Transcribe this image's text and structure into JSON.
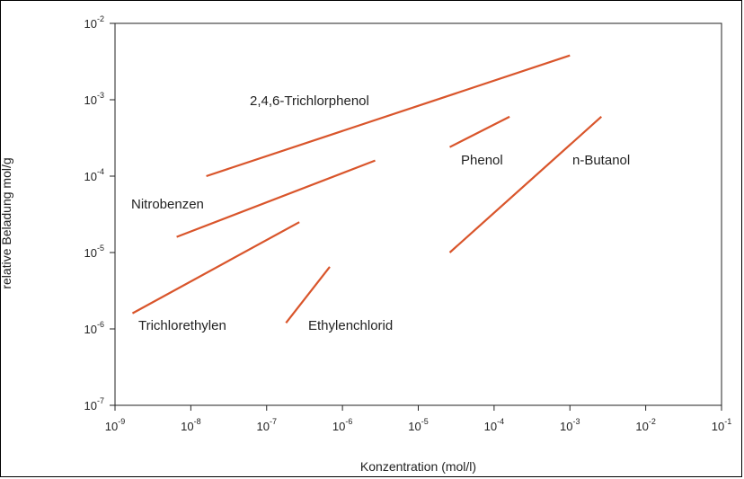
{
  "chart_data": {
    "type": "line",
    "title": "",
    "xlabel": "Konzentration (mol/l)",
    "ylabel": "relative Beladung mol/g",
    "xscale": "log",
    "yscale": "log",
    "xlim": [
      1e-09,
      0.1
    ],
    "ylim": [
      1e-07,
      0.01
    ],
    "x_ticks": [
      {
        "base": "10",
        "exp": "-9",
        "value": 1e-09
      },
      {
        "base": "10",
        "exp": "-8",
        "value": 1e-08
      },
      {
        "base": "10",
        "exp": "-7",
        "value": 1e-07
      },
      {
        "base": "10",
        "exp": "-6",
        "value": 1e-06
      },
      {
        "base": "10",
        "exp": "-5",
        "value": 1e-05
      },
      {
        "base": "10",
        "exp": "-4",
        "value": 0.0001
      },
      {
        "base": "10",
        "exp": "-3",
        "value": 0.001
      },
      {
        "base": "10",
        "exp": "-2",
        "value": 0.01
      },
      {
        "base": "10",
        "exp": "-1",
        "value": 0.1
      }
    ],
    "y_ticks": [
      {
        "base": "10",
        "exp": "-7",
        "value": 1e-07
      },
      {
        "base": "10",
        "exp": "-6",
        "value": 1e-06
      },
      {
        "base": "10",
        "exp": "-5",
        "value": 1e-05
      },
      {
        "base": "10",
        "exp": "-4",
        "value": 0.0001
      },
      {
        "base": "10",
        "exp": "-3",
        "value": 0.001
      },
      {
        "base": "10",
        "exp": "-2",
        "value": 0.01
      }
    ],
    "grid": false,
    "line_color": "#d9552b",
    "series": [
      {
        "name": "2,4,6-Trichlorphenol",
        "x": [
          1.6e-08,
          0.001
        ],
        "y": [
          0.0001,
          0.0038
        ]
      },
      {
        "name": "Nitrobenzen",
        "x": [
          6.5e-09,
          2.7e-06
        ],
        "y": [
          1.6e-05,
          0.00016
        ]
      },
      {
        "name": "Trichlorethylen",
        "x": [
          1.7e-09,
          2.7e-07
        ],
        "y": [
          1.6e-06,
          2.5e-05
        ]
      },
      {
        "name": "Ethylenchlorid",
        "x": [
          1.8e-07,
          6.8e-07
        ],
        "y": [
          1.2e-06,
          6.5e-06
        ]
      },
      {
        "name": "Phenol",
        "x": [
          2.6e-05,
          0.00016
        ],
        "y": [
          0.00024,
          0.0006
        ]
      },
      {
        "name": "n-Butanol",
        "x": [
          2.6e-05,
          0.0026
        ],
        "y": [
          1e-05,
          0.0006
        ]
      }
    ]
  }
}
